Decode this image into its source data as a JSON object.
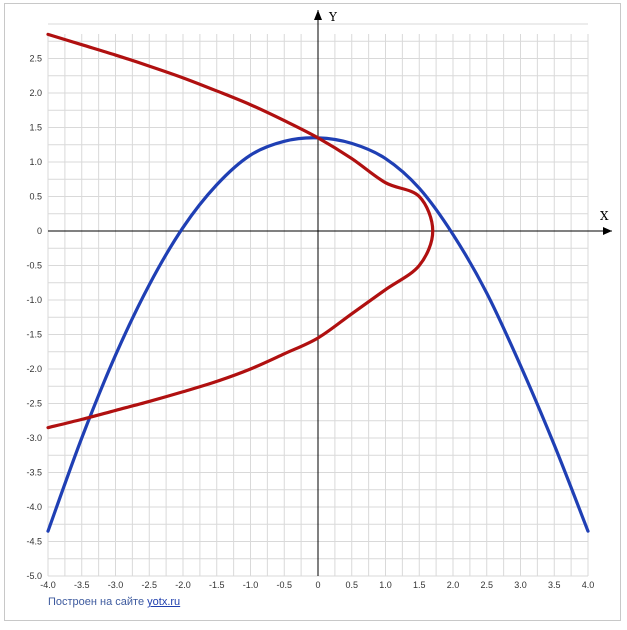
{
  "chart_data": {
    "type": "line",
    "title": "",
    "xlabel": "X",
    "ylabel": "Y",
    "xlim": [
      -4.0,
      4.0
    ],
    "ylim": [
      -5.0,
      3.0
    ],
    "x_ticks": [
      "-4.0",
      "-3.5",
      "-3.0",
      "-2.5",
      "-2.0",
      "-1.5",
      "-1.0",
      "-0.5",
      "0",
      "0.5",
      "1.0",
      "1.5",
      "2.0",
      "2.5",
      "3.0",
      "3.5",
      "4.0"
    ],
    "y_ticks": [
      "2.5",
      "2.0",
      "1.5",
      "1.0",
      "0.5",
      "0",
      "-0.5",
      "-1.0",
      "-1.5",
      "-2.0",
      "-2.5",
      "-3.0",
      "-3.5",
      "-4.0",
      "-4.5",
      "-5.0"
    ],
    "grid": true,
    "series": [
      {
        "color": "#1f3fb4",
        "kind": "parabola",
        "x": [
          -4.0,
          -3.5,
          -3.0,
          -2.5,
          -2.0,
          -1.5,
          -1.0,
          -0.5,
          0,
          0.5,
          1.0,
          1.5,
          2.0,
          2.5,
          3.0,
          3.5,
          4.0
        ],
        "y": [
          -4.35,
          -3.0,
          -1.8,
          -0.78,
          0.05,
          0.67,
          1.1,
          1.3,
          1.35,
          1.27,
          1.05,
          0.62,
          -0.05,
          -0.9,
          -1.95,
          -3.1,
          -4.35
        ]
      },
      {
        "color": "#b01010",
        "kind": "sideways-parabola",
        "x": [
          -4.0,
          -3.5,
          -3.0,
          -2.5,
          -2.0,
          -1.5,
          -1.0,
          -0.5,
          0,
          0.5,
          1.0,
          1.5,
          1.7,
          1.5,
          1.0,
          0.5,
          0,
          -0.5,
          -1.0,
          -1.5,
          -2.0,
          -2.5,
          -3.0,
          -3.5,
          -4.0
        ],
        "y": [
          2.85,
          2.7,
          2.55,
          2.39,
          2.22,
          2.03,
          1.83,
          1.6,
          1.35,
          1.05,
          0.7,
          0.5,
          0,
          -0.5,
          -0.85,
          -1.2,
          -1.55,
          -1.78,
          -2.0,
          -2.18,
          -2.33,
          -2.47,
          -2.6,
          -2.73,
          -2.85
        ]
      }
    ]
  },
  "footer": {
    "credit_text": "Построен на сайте ",
    "credit_link": "yotx.ru"
  }
}
